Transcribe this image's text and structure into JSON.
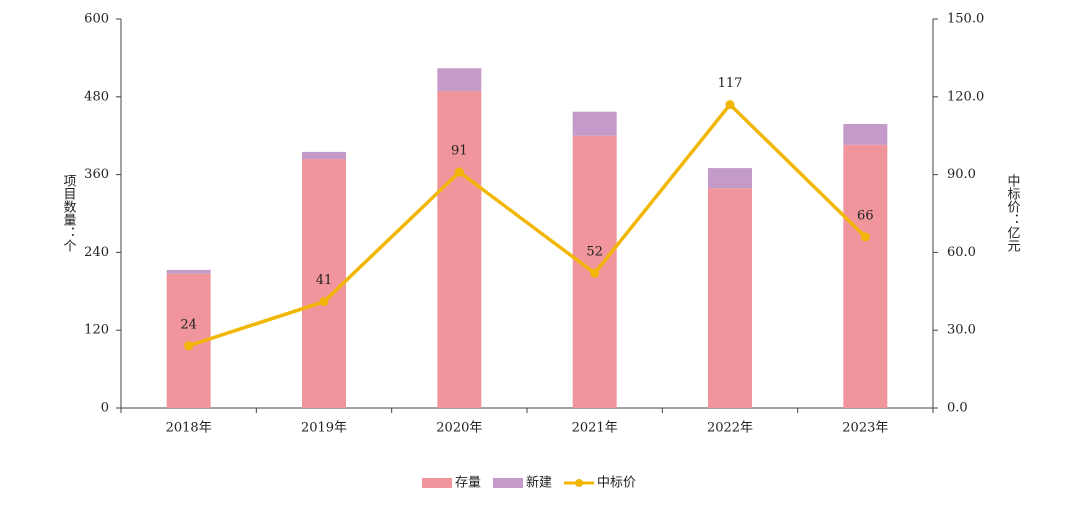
{
  "chart_data": {
    "type": "bar",
    "categories": [
      "2018年",
      "2019年",
      "2020年",
      "2021年",
      "2022年",
      "2023年"
    ],
    "series": [
      {
        "name": "存量",
        "color": "#f0959c",
        "values": [
          207,
          384,
          489,
          420,
          339,
          406
        ]
      },
      {
        "name": "新建",
        "color": "#c49bc8",
        "values": [
          6,
          11,
          35,
          37,
          31,
          32
        ]
      },
      {
        "name": "中标价",
        "color": "#f2b705",
        "axis": "y2",
        "type": "line",
        "values": [
          24,
          41,
          91,
          52,
          117,
          66
        ]
      }
    ],
    "ylabel": "项目数量：个",
    "y2label": "中标价：亿元",
    "ylim": [
      0,
      600
    ],
    "yticks": [
      0,
      120,
      240,
      360,
      480,
      600
    ],
    "y2lim": [
      0,
      150
    ],
    "y2ticks": [
      {
        "value": 0,
        "label": "0.0"
      },
      {
        "value": 30,
        "label": "30.0"
      },
      {
        "value": 60,
        "label": "60.0"
      },
      {
        "value": 90,
        "label": "90.0"
      },
      {
        "value": 120,
        "label": "120.0"
      },
      {
        "value": 150,
        "label": "150.0"
      }
    ],
    "stacked": true,
    "legend": "bottom"
  }
}
